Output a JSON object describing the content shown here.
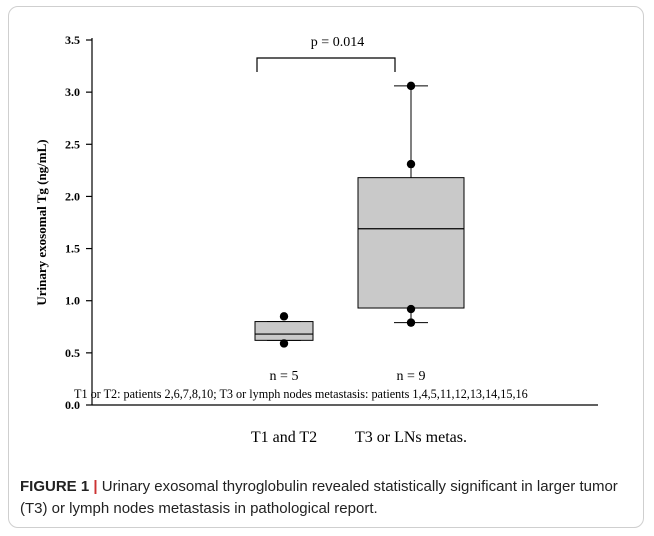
{
  "chart_data": {
    "type": "box",
    "title": "",
    "xlabel": "",
    "ylabel": "Urinary exosomal Tg (ng/mL)",
    "ylim": [
      0,
      3.5
    ],
    "yticks": [
      "0.0",
      "0.5",
      "1.0",
      "1.5",
      "2.0",
      "2.5",
      "3.0",
      "3.5"
    ],
    "categories": [
      "T1 and T2",
      "T3 or LNs metas."
    ],
    "groups": [
      {
        "label": "T1 and T2",
        "n_label": "n = 5",
        "whisker_low": 0.62,
        "q1": 0.62,
        "median": 0.68,
        "q3": 0.8,
        "whisker_high": 0.8,
        "outliers": [
          0.85,
          0.59
        ]
      },
      {
        "label": "T3 or LNs metas.",
        "n_label": "n = 9",
        "whisker_low": 0.79,
        "q1": 0.93,
        "median": 1.69,
        "q3": 2.18,
        "whisker_high": 3.06,
        "outliers": [
          3.06,
          2.31,
          0.92,
          0.79
        ]
      }
    ],
    "annotation": "p = 0.014",
    "footnote": "T1 or T2: patients 2,6,7,8,10; T3 or lymph nodes metastasis: patients 1,4,5,11,12,13,14,15,16"
  },
  "caption": {
    "figure_label": "FIGURE 1",
    "separator": "|",
    "text": " Urinary exosomal thyroglobulin revealed statistically significant in larger tumor (T3) or lymph nodes metastasis in pathological report."
  },
  "colors": {
    "box_fill": "#c9c9c9",
    "stroke": "#000000",
    "point": "#000000",
    "accent": "#cc3333"
  }
}
